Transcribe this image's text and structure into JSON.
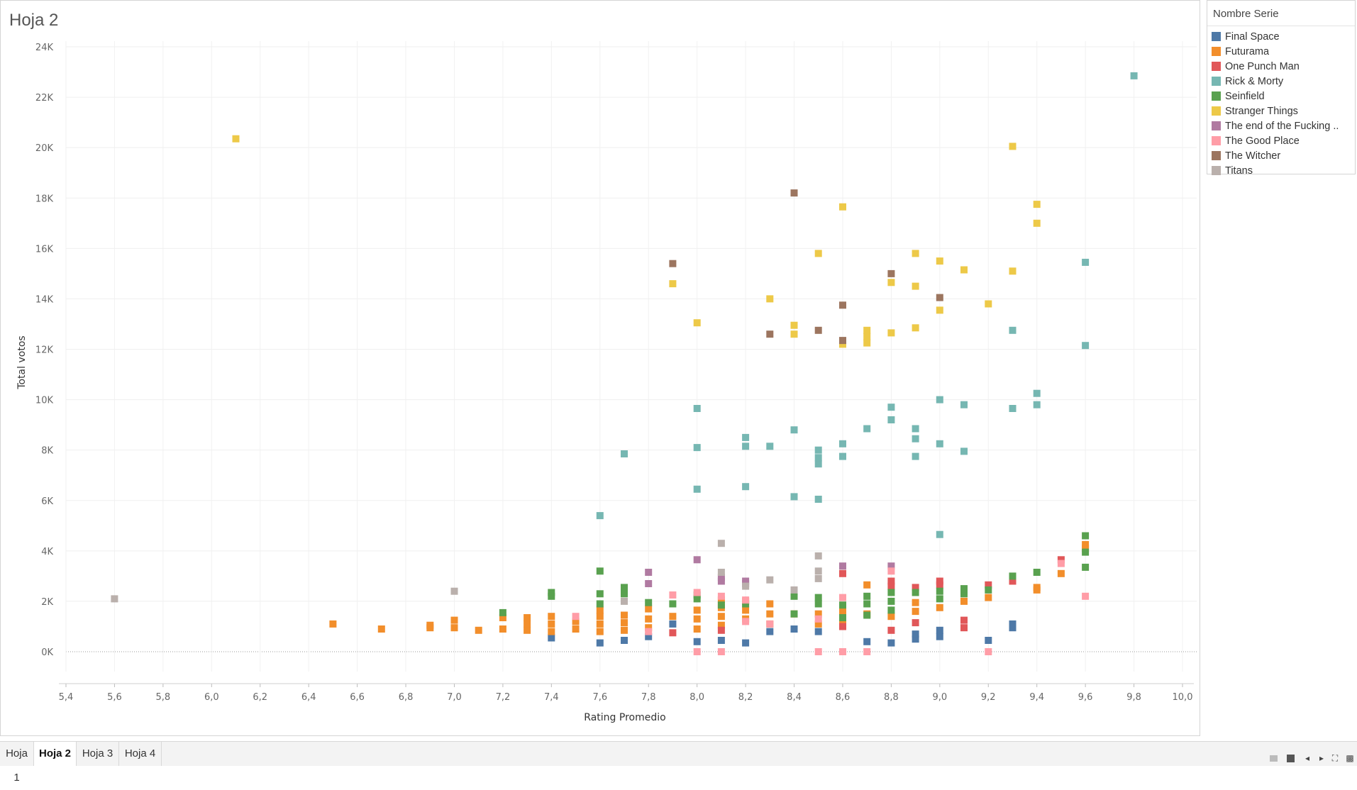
{
  "sheet_title": "Hoja 2",
  "tabs": [
    {
      "label": "Hoja 1",
      "active": false
    },
    {
      "label": "Hoja 2",
      "active": true
    },
    {
      "label": "Hoja 3",
      "active": false
    },
    {
      "label": "Hoja 4",
      "active": false
    }
  ],
  "legend": {
    "title": "Nombre Serie",
    "items": [
      {
        "label": "Final Space",
        "color": "#4e79a7"
      },
      {
        "label": "Futurama",
        "color": "#f28e2b"
      },
      {
        "label": "One Punch Man",
        "color": "#e15759"
      },
      {
        "label": "Rick & Morty",
        "color": "#76b7b2"
      },
      {
        "label": "Seinfield",
        "color": "#59a14f"
      },
      {
        "label": "Stranger Things",
        "color": "#edc948"
      },
      {
        "label": "The end of the Fucking ..",
        "color": "#b07aa1"
      },
      {
        "label": "The Good Place",
        "color": "#ff9da7"
      },
      {
        "label": "The Witcher",
        "color": "#9c755f"
      },
      {
        "label": "Titans",
        "color": "#bab0ac"
      }
    ]
  },
  "chart_data": {
    "type": "scatter",
    "xlabel": "Rating Promedio",
    "ylabel": "Total votos",
    "xlim": [
      5.4,
      10.0
    ],
    "ylim": [
      0,
      24000
    ],
    "x_ticks": [
      "5,4",
      "5,6",
      "5,8",
      "6,0",
      "6,2",
      "6,4",
      "6,6",
      "6,8",
      "7,0",
      "7,2",
      "7,4",
      "7,6",
      "7,8",
      "8,0",
      "8,2",
      "8,4",
      "8,6",
      "8,8",
      "9,0",
      "9,2",
      "9,4",
      "9,6",
      "9,8",
      "10,0"
    ],
    "y_ticks": [
      "0K",
      "2K",
      "4K",
      "6K",
      "8K",
      "10K",
      "12K",
      "14K",
      "16K",
      "18K",
      "20K",
      "22K",
      "24K"
    ],
    "grid": true,
    "series": [
      {
        "name": "Final Space",
        "color": "#4e79a7",
        "points": [
          [
            7.4,
            550
          ],
          [
            7.6,
            350
          ],
          [
            7.7,
            450
          ],
          [
            7.8,
            600
          ],
          [
            7.9,
            1100
          ],
          [
            8.0,
            400
          ],
          [
            8.1,
            450
          ],
          [
            8.2,
            350
          ],
          [
            8.3,
            800
          ],
          [
            8.4,
            900
          ],
          [
            8.5,
            800
          ],
          [
            8.6,
            1050
          ],
          [
            8.7,
            400
          ],
          [
            8.8,
            350
          ],
          [
            8.9,
            500
          ],
          [
            8.9,
            700
          ],
          [
            9.0,
            600
          ],
          [
            9.0,
            850
          ],
          [
            9.2,
            450
          ],
          [
            9.3,
            950
          ],
          [
            9.3,
            1100
          ]
        ]
      },
      {
        "name": "Futurama",
        "color": "#f28e2b",
        "points": [
          [
            6.5,
            1100
          ],
          [
            6.7,
            900
          ],
          [
            6.9,
            950
          ],
          [
            6.9,
            1050
          ],
          [
            7.0,
            950
          ],
          [
            7.0,
            1250
          ],
          [
            7.1,
            850
          ],
          [
            7.2,
            900
          ],
          [
            7.2,
            1350
          ],
          [
            7.3,
            850
          ],
          [
            7.3,
            1100
          ],
          [
            7.3,
            1350
          ],
          [
            7.4,
            800
          ],
          [
            7.4,
            1100
          ],
          [
            7.4,
            1400
          ],
          [
            7.5,
            900
          ],
          [
            7.5,
            1200
          ],
          [
            7.6,
            800
          ],
          [
            7.6,
            1100
          ],
          [
            7.6,
            1400
          ],
          [
            7.6,
            1650
          ],
          [
            7.7,
            850
          ],
          [
            7.7,
            1150
          ],
          [
            7.7,
            1450
          ],
          [
            7.8,
            950
          ],
          [
            7.8,
            1300
          ],
          [
            7.8,
            1700
          ],
          [
            7.9,
            1400
          ],
          [
            8.0,
            900
          ],
          [
            8.0,
            1300
          ],
          [
            8.0,
            1650
          ],
          [
            8.1,
            1050
          ],
          [
            8.1,
            1400
          ],
          [
            8.1,
            1750
          ],
          [
            8.1,
            2050
          ],
          [
            8.2,
            1300
          ],
          [
            8.2,
            1650
          ],
          [
            8.2,
            2000
          ],
          [
            8.3,
            1100
          ],
          [
            8.3,
            1500
          ],
          [
            8.3,
            1900
          ],
          [
            8.4,
            1500
          ],
          [
            8.5,
            1100
          ],
          [
            8.5,
            1500
          ],
          [
            8.6,
            1250
          ],
          [
            8.6,
            1600
          ],
          [
            8.7,
            1500
          ],
          [
            8.7,
            2650
          ],
          [
            8.8,
            1400
          ],
          [
            8.9,
            1600
          ],
          [
            8.9,
            1950
          ],
          [
            9.0,
            1750
          ],
          [
            9.1,
            2000
          ],
          [
            9.2,
            2150
          ],
          [
            9.3,
            2800
          ],
          [
            9.4,
            2450
          ],
          [
            9.4,
            2550
          ],
          [
            9.5,
            3100
          ],
          [
            9.6,
            4100
          ],
          [
            9.6,
            4250
          ]
        ]
      },
      {
        "name": "One Punch Man",
        "color": "#e15759",
        "points": [
          [
            7.9,
            750
          ],
          [
            8.1,
            850
          ],
          [
            8.6,
            1000
          ],
          [
            8.6,
            3100
          ],
          [
            8.8,
            850
          ],
          [
            8.8,
            2600
          ],
          [
            8.8,
            2800
          ],
          [
            8.9,
            1150
          ],
          [
            8.9,
            2550
          ],
          [
            9.0,
            2650
          ],
          [
            9.0,
            2800
          ],
          [
            9.1,
            950
          ],
          [
            9.1,
            1250
          ],
          [
            9.2,
            2650
          ],
          [
            9.3,
            2800
          ],
          [
            9.5,
            3650
          ]
        ]
      },
      {
        "name": "Rick & Morty",
        "color": "#76b7b2",
        "points": [
          [
            7.6,
            5400
          ],
          [
            7.7,
            7850
          ],
          [
            8.0,
            6450
          ],
          [
            8.0,
            8100
          ],
          [
            8.0,
            9650
          ],
          [
            8.2,
            6550
          ],
          [
            8.2,
            8150
          ],
          [
            8.2,
            8500
          ],
          [
            8.3,
            8150
          ],
          [
            8.4,
            6150
          ],
          [
            8.4,
            8800
          ],
          [
            8.5,
            6050
          ],
          [
            8.5,
            7450
          ],
          [
            8.5,
            7700
          ],
          [
            8.5,
            8000
          ],
          [
            8.6,
            7750
          ],
          [
            8.6,
            8250
          ],
          [
            8.7,
            8850
          ],
          [
            8.8,
            9200
          ],
          [
            8.8,
            9700
          ],
          [
            8.9,
            7750
          ],
          [
            8.9,
            8450
          ],
          [
            8.9,
            8850
          ],
          [
            9.0,
            4650
          ],
          [
            9.0,
            8250
          ],
          [
            9.0,
            10000
          ],
          [
            9.1,
            7950
          ],
          [
            9.1,
            9800
          ],
          [
            9.3,
            9650
          ],
          [
            9.3,
            12750
          ],
          [
            9.4,
            9800
          ],
          [
            9.4,
            10250
          ],
          [
            9.6,
            12150
          ],
          [
            9.6,
            15450
          ],
          [
            9.8,
            22850
          ]
        ]
      },
      {
        "name": "Seinfield",
        "color": "#59a14f",
        "points": [
          [
            7.2,
            1550
          ],
          [
            7.4,
            2200
          ],
          [
            7.4,
            2350
          ],
          [
            7.6,
            1900
          ],
          [
            7.6,
            2300
          ],
          [
            7.6,
            3200
          ],
          [
            7.7,
            2300
          ],
          [
            7.7,
            2550
          ],
          [
            7.8,
            1950
          ],
          [
            7.9,
            1900
          ],
          [
            8.0,
            2100
          ],
          [
            8.0,
            2250
          ],
          [
            8.1,
            1850
          ],
          [
            8.2,
            1900
          ],
          [
            8.4,
            1500
          ],
          [
            8.4,
            2200
          ],
          [
            8.5,
            1900
          ],
          [
            8.5,
            2150
          ],
          [
            8.6,
            1350
          ],
          [
            8.6,
            1850
          ],
          [
            8.7,
            1450
          ],
          [
            8.7,
            1900
          ],
          [
            8.7,
            2200
          ],
          [
            8.8,
            1650
          ],
          [
            8.8,
            2000
          ],
          [
            8.8,
            2350
          ],
          [
            8.9,
            2350
          ],
          [
            9.0,
            2100
          ],
          [
            9.0,
            2400
          ],
          [
            9.1,
            2300
          ],
          [
            9.1,
            2500
          ],
          [
            9.2,
            2450
          ],
          [
            9.3,
            3000
          ],
          [
            9.4,
            3150
          ],
          [
            9.6,
            3350
          ],
          [
            9.6,
            3950
          ],
          [
            9.6,
            4600
          ]
        ]
      },
      {
        "name": "Stranger Things",
        "color": "#edc948",
        "points": [
          [
            6.1,
            20350
          ],
          [
            7.9,
            14600
          ],
          [
            8.0,
            13050
          ],
          [
            8.3,
            14000
          ],
          [
            8.4,
            12600
          ],
          [
            8.4,
            12950
          ],
          [
            8.5,
            15800
          ],
          [
            8.6,
            12200
          ],
          [
            8.6,
            17650
          ],
          [
            8.7,
            12250
          ],
          [
            8.7,
            12500
          ],
          [
            8.7,
            12750
          ],
          [
            8.8,
            12650
          ],
          [
            8.8,
            14650
          ],
          [
            8.9,
            12850
          ],
          [
            8.9,
            14500
          ],
          [
            8.9,
            15800
          ],
          [
            9.0,
            13550
          ],
          [
            9.0,
            15500
          ],
          [
            9.1,
            15150
          ],
          [
            9.2,
            13800
          ],
          [
            9.3,
            15100
          ],
          [
            9.3,
            20050
          ],
          [
            9.4,
            17000
          ],
          [
            9.4,
            17750
          ]
        ]
      },
      {
        "name": "The end of the Fucking ..",
        "color": "#b07aa1",
        "points": [
          [
            7.8,
            2700
          ],
          [
            7.8,
            3150
          ],
          [
            8.0,
            3650
          ],
          [
            8.1,
            2800
          ],
          [
            8.1,
            2950
          ],
          [
            8.2,
            2700
          ],
          [
            8.2,
            2800
          ],
          [
            8.6,
            3400
          ],
          [
            8.8,
            3400
          ]
        ]
      },
      {
        "name": "The Good Place",
        "color": "#ff9da7",
        "points": [
          [
            7.5,
            1400
          ],
          [
            7.8,
            800
          ],
          [
            7.9,
            2250
          ],
          [
            8.0,
            0
          ],
          [
            8.0,
            2350
          ],
          [
            8.1,
            0
          ],
          [
            8.1,
            2200
          ],
          [
            8.2,
            1200
          ],
          [
            8.2,
            2050
          ],
          [
            8.3,
            1100
          ],
          [
            8.5,
            0
          ],
          [
            8.5,
            1300
          ],
          [
            8.6,
            0
          ],
          [
            8.6,
            2150
          ],
          [
            8.7,
            0
          ],
          [
            8.8,
            3200
          ],
          [
            9.2,
            0
          ],
          [
            9.5,
            3500
          ],
          [
            9.6,
            2200
          ]
        ]
      },
      {
        "name": "The Witcher",
        "color": "#9c755f",
        "points": [
          [
            7.9,
            15400
          ],
          [
            8.3,
            12600
          ],
          [
            8.4,
            18200
          ],
          [
            8.5,
            12750
          ],
          [
            8.6,
            12350
          ],
          [
            8.6,
            13750
          ],
          [
            8.8,
            15000
          ],
          [
            9.0,
            14050
          ]
        ]
      },
      {
        "name": "Titans",
        "color": "#bab0ac",
        "points": [
          [
            5.6,
            2100
          ],
          [
            7.0,
            2400
          ],
          [
            7.7,
            2000
          ],
          [
            8.1,
            3150
          ],
          [
            8.1,
            4300
          ],
          [
            8.2,
            2600
          ],
          [
            8.3,
            2850
          ],
          [
            8.4,
            2450
          ],
          [
            8.5,
            2900
          ],
          [
            8.5,
            3200
          ],
          [
            8.5,
            3800
          ]
        ]
      }
    ]
  }
}
